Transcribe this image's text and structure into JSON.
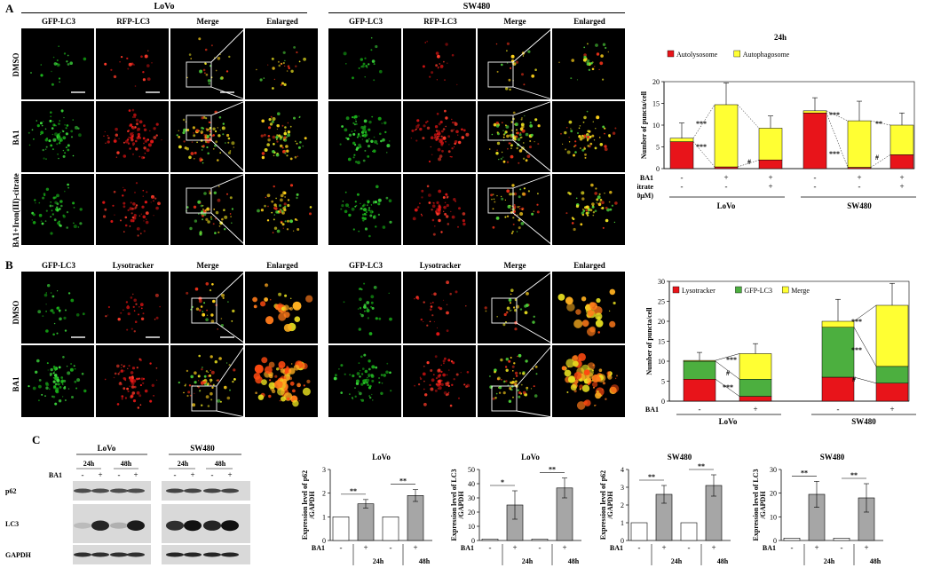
{
  "panelA": {
    "letter": "A",
    "groups": [
      "LoVo",
      "SW480"
    ],
    "columns": [
      "GFP-LC3",
      "RFP-LC3",
      "Merge",
      "Enlarged"
    ],
    "rows": [
      "DMSO",
      "BA1",
      "BA1+Iron(III)-citrate"
    ]
  },
  "panelB": {
    "letter": "B",
    "columns": [
      "GFP-LC3",
      "Lysotracker",
      "Merge",
      "Enlarged"
    ],
    "rows": [
      "DMSO",
      "BA1"
    ]
  },
  "panelC": {
    "letter": "C",
    "blot": {
      "groups": [
        "LoVo",
        "SW480"
      ],
      "times": [
        "24h",
        "48h",
        "24h",
        "48h"
      ],
      "ba1_label": "BA1",
      "ba1_marks": [
        "-",
        "+",
        "-",
        "+",
        "-",
        "+",
        "-",
        "+"
      ],
      "proteins": [
        "p62",
        "LC3",
        "GAPDH"
      ]
    }
  },
  "chart_data": [
    {
      "type": "bar",
      "subtype": "stacked",
      "title": "24h",
      "ylabel": "Number of puncta/cell",
      "ylim": [
        0,
        20
      ],
      "yticks": [
        0,
        5,
        10,
        15,
        20
      ],
      "legend": [
        {
          "name": "Autolysosome",
          "color": "#e8141a"
        },
        {
          "name": "Autophagosome",
          "color": "#ffff33"
        }
      ],
      "row_labels": [
        "BA1",
        "Iron(III)-citrate",
        "(10μM)"
      ],
      "ba1_marks": [
        "-",
        "+",
        "+",
        "-",
        "+",
        "+"
      ],
      "iron_marks": [
        "-",
        "-",
        "+",
        "-",
        "-",
        "+"
      ],
      "groups": [
        "LoVo",
        "SW480"
      ],
      "series": [
        {
          "name": "Autolysosome",
          "values": [
            6.2,
            0.4,
            2.0,
            12.8,
            0.3,
            3.2
          ]
        },
        {
          "name": "Autophagosome",
          "values": [
            0.8,
            14.3,
            7.3,
            0.5,
            10.7,
            6.8
          ]
        }
      ],
      "errors": [
        3.5,
        5.0,
        2.8,
        3.0,
        4.5,
        2.8
      ],
      "annotations": [
        "***",
        "***",
        "#",
        "***",
        "**",
        "***",
        "#"
      ]
    },
    {
      "type": "bar",
      "subtype": "stacked",
      "ylabel": "Number of puncta/cell",
      "ylim": [
        0,
        30
      ],
      "yticks": [
        0,
        5,
        10,
        15,
        20,
        25,
        30
      ],
      "legend": [
        {
          "name": "Lysotracker",
          "color": "#e8141a"
        },
        {
          "name": "GFP-LC3",
          "color": "#4caf3f"
        },
        {
          "name": "Merge",
          "color": "#ffff33"
        }
      ],
      "row_labels": [
        "BA1"
      ],
      "ba1_marks": [
        "-",
        "+",
        "-",
        "+"
      ],
      "groups": [
        "LoVo",
        "SW480"
      ],
      "series": [
        {
          "name": "Lysotracker",
          "values": [
            5.5,
            1.2,
            6.0,
            4.5
          ]
        },
        {
          "name": "GFP-LC3",
          "values": [
            4.5,
            4.3,
            12.5,
            4.2
          ]
        },
        {
          "name": "Merge",
          "values": [
            0.2,
            6.4,
            1.5,
            15.3
          ]
        }
      ],
      "errors": [
        2.0,
        2.5,
        5.5,
        5.5
      ],
      "annotations": [
        "***",
        "#",
        "***",
        "***",
        "***",
        "#"
      ]
    },
    {
      "type": "bar",
      "title": "LoVo",
      "ylabel": "Expression level of p62 /GAPDH",
      "ylim": [
        0,
        3
      ],
      "yticks": [
        0,
        1,
        2,
        3
      ],
      "x_marks": [
        "-",
        "+",
        "-",
        "+"
      ],
      "times": [
        "24h",
        "48h"
      ],
      "ba1_label": "BA1",
      "values": [
        1.0,
        1.55,
        1.0,
        1.9
      ],
      "errors": [
        0,
        0.18,
        0,
        0.25
      ],
      "annotations": [
        "**",
        "**"
      ]
    },
    {
      "type": "bar",
      "title": "LoVo",
      "ylabel": "Expression level of LC3 /GAPDH",
      "ylim": [
        0,
        50
      ],
      "yticks": [
        0,
        10,
        20,
        30,
        40,
        50
      ],
      "x_marks": [
        "-",
        "+",
        "-",
        "+"
      ],
      "times": [
        "24h",
        "48h"
      ],
      "ba1_label": "BA1",
      "values": [
        1.0,
        25.0,
        1.0,
        37.0
      ],
      "errors": [
        0,
        10.0,
        0,
        7.0
      ],
      "annotations": [
        "*",
        "**"
      ]
    },
    {
      "type": "bar",
      "title": "SW480",
      "ylabel": "Expression level of p62 /GAPDH",
      "ylim": [
        0,
        4
      ],
      "yticks": [
        0,
        1,
        2,
        3,
        4
      ],
      "x_marks": [
        "-",
        "+",
        "-",
        "+"
      ],
      "times": [
        "24h",
        "48h"
      ],
      "ba1_label": "BA1",
      "values": [
        1.0,
        2.6,
        1.0,
        3.1
      ],
      "errors": [
        0,
        0.5,
        0,
        0.6
      ],
      "annotations": [
        "**",
        "**"
      ]
    },
    {
      "type": "bar",
      "title": "SW480",
      "ylabel": "Expression level of LC3 /GAPDH",
      "ylim": [
        0,
        30
      ],
      "yticks": [
        0,
        10,
        20,
        30
      ],
      "x_marks": [
        "-",
        "+",
        "-",
        "+"
      ],
      "times": [
        "24h",
        "48h"
      ],
      "ba1_label": "BA1",
      "values": [
        1.0,
        19.5,
        1.0,
        18.0
      ],
      "errors": [
        0,
        5.5,
        0,
        6.0
      ],
      "annotations": [
        "**",
        "**"
      ]
    }
  ]
}
